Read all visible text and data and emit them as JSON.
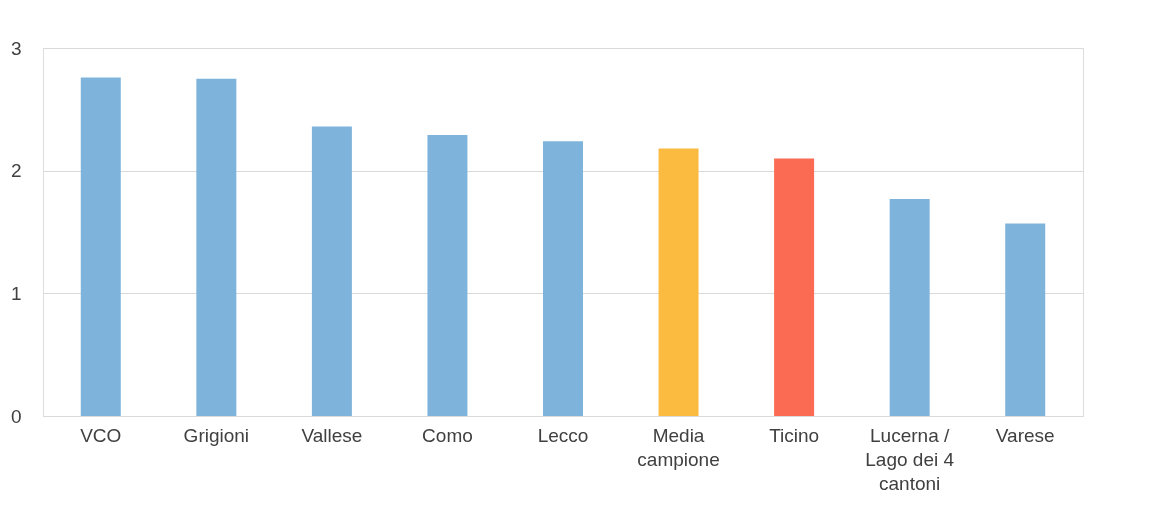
{
  "chart_data": {
    "type": "bar",
    "categories": [
      "VCO",
      "Grigioni",
      "Vallese",
      "Como",
      "Lecco",
      "Media campione",
      "Ticino",
      "Lucerna / Lago dei 4 cantoni",
      "Varese"
    ],
    "values": [
      2.76,
      2.75,
      2.36,
      2.29,
      2.24,
      2.18,
      2.1,
      1.77,
      1.57
    ],
    "colors": [
      "#7eb4dc",
      "#7eb4dc",
      "#7eb4dc",
      "#7eb4dc",
      "#7eb4dc",
      "#fbbb41",
      "#fb6a52",
      "#7eb4dc",
      "#7eb4dc"
    ],
    "ylim": [
      0,
      3
    ],
    "yticks": [
      0,
      1,
      2,
      3
    ],
    "grid": "y"
  }
}
